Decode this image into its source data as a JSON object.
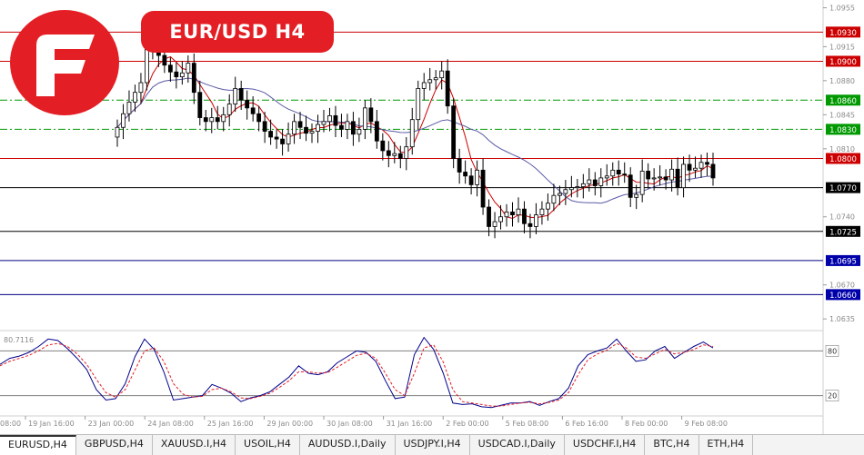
{
  "header": {
    "title": "EUR/USD  H4"
  },
  "colors": {
    "brand": "#e31e24",
    "resistance": "#cc0000",
    "pivot": "#009900",
    "support": "#000000",
    "deep_support": "#000080",
    "ma_fast": "#cc0000",
    "ma_slow": "#5a5aa6",
    "stoch_main": "#00008b",
    "stoch_signal": "#e31e24"
  },
  "tabs": [
    {
      "label": "EURUSD,H4",
      "active": true
    },
    {
      "label": "GBPUSD,H4"
    },
    {
      "label": "XAUUSD.I,H4"
    },
    {
      "label": "USOIL,H4"
    },
    {
      "label": "AUDUSD.I,Daily"
    },
    {
      "label": "USDJPY.I,H4"
    },
    {
      "label": "USDCAD.I,Daily"
    },
    {
      "label": "USDCHF.I,H4"
    },
    {
      "label": "BTC,H4"
    },
    {
      "label": "ETH,H4"
    }
  ],
  "chart_data": {
    "type": "candlestick",
    "symbol": "EURUSD",
    "timeframe": "H4",
    "ylim": [
      1.0623,
      1.0963
    ],
    "y_ticks": [
      "1.0955",
      "1.0915",
      "1.0880",
      "1.0845",
      "1.0810",
      "1.0740",
      "1.0670",
      "1.0635"
    ],
    "levels": [
      {
        "value": 1.093,
        "label": "1.0930",
        "kind": "resistance"
      },
      {
        "value": 1.09,
        "label": "1.0900",
        "kind": "resistance"
      },
      {
        "value": 1.086,
        "label": "1.0860",
        "kind": "pivot"
      },
      {
        "value": 1.083,
        "label": "1.0830",
        "kind": "pivot"
      },
      {
        "value": 1.08,
        "label": "1.0800",
        "kind": "resistance"
      },
      {
        "value": 1.077,
        "label": "1.0770",
        "kind": "support"
      },
      {
        "value": 1.0725,
        "label": "1.0725",
        "kind": "support"
      },
      {
        "value": 1.0695,
        "label": "1.0695",
        "kind": "deep_support"
      },
      {
        "value": 1.066,
        "label": "1.0660",
        "kind": "deep_support"
      }
    ],
    "x_labels": [
      "19 Jan 16:00",
      "23 Jan 00:00",
      "24 Jan 08:00",
      "25 Jan 16:00",
      "29 Jan 00:00",
      "30 Jan 08:00",
      "31 Jan 16:00",
      "2 Feb 00:00",
      "5 Feb 08:00",
      "6 Feb 16:00",
      "8 Feb 00:00",
      "9 Feb 08:00"
    ],
    "first_x_label_fragment": "08:00",
    "closes": [
      1.0832,
      1.0846,
      1.0858,
      1.0868,
      1.0878,
      1.0912,
      1.092,
      1.0906,
      1.0896,
      1.0889,
      1.0884,
      1.0888,
      1.0898,
      1.0868,
      1.0842,
      1.0838,
      1.0842,
      1.0838,
      1.0845,
      1.0856,
      1.0872,
      1.086,
      1.0852,
      1.0846,
      1.0838,
      1.0828,
      1.0822,
      1.082,
      1.0815,
      1.0825,
      1.0838,
      1.0832,
      1.0826,
      1.0828,
      1.0835,
      1.0838,
      1.0844,
      1.0834,
      1.083,
      1.0838,
      1.0825,
      1.083,
      1.0852,
      1.0838,
      1.0818,
      1.0808,
      1.0803,
      1.0805,
      1.08,
      1.0812,
      1.084,
      1.0872,
      1.0878,
      1.0881,
      1.0883,
      1.089,
      1.0854,
      1.08,
      1.0786,
      1.0782,
      1.0773,
      1.0788,
      1.075,
      1.073,
      1.0735,
      1.074,
      1.0745,
      1.0742,
      1.0748,
      1.0733,
      1.073,
      1.0742,
      1.0748,
      1.0754,
      1.0762,
      1.0764,
      1.0768,
      1.077,
      1.0771,
      1.0774,
      1.0778,
      1.0772,
      1.078,
      1.0782,
      1.0788,
      1.0784,
      1.0783,
      1.076,
      1.0763,
      1.0787,
      1.0779,
      1.078,
      1.0781,
      1.0778,
      1.0789,
      1.077,
      1.0794,
      1.0788,
      1.079,
      1.0796,
      1.0794,
      1.078
    ],
    "stoch_levels": [
      80,
      20
    ],
    "stoch_value_label": "80.7116",
    "stoch_main": [
      62,
      70,
      73,
      78,
      86,
      96,
      94,
      83,
      70,
      55,
      28,
      14,
      16,
      36,
      72,
      96,
      82,
      52,
      14,
      16,
      18,
      20,
      35,
      30,
      23,
      12,
      17,
      20,
      25,
      35,
      45,
      60,
      50,
      48,
      52,
      64,
      72,
      80,
      78,
      66,
      40,
      16,
      18,
      75,
      98,
      82,
      50,
      10,
      8,
      9,
      5,
      4,
      7,
      10,
      10,
      12,
      7,
      12,
      16,
      30,
      60,
      75,
      80,
      84,
      96,
      80,
      66,
      68,
      80,
      86,
      70,
      78,
      86,
      92,
      84
    ],
    "stoch_signal": [
      60,
      66,
      70,
      74,
      80,
      88,
      90,
      86,
      76,
      62,
      42,
      24,
      18,
      28,
      54,
      80,
      84,
      66,
      36,
      22,
      18,
      19,
      28,
      30,
      25,
      17,
      16,
      19,
      23,
      31,
      40,
      52,
      52,
      50,
      51,
      58,
      66,
      74,
      77,
      70,
      50,
      28,
      20,
      50,
      84,
      88,
      65,
      28,
      12,
      10,
      8,
      6,
      6,
      8,
      10,
      11,
      9,
      11,
      14,
      24,
      48,
      68,
      76,
      81,
      90,
      84,
      72,
      70,
      76,
      82,
      76,
      78,
      82,
      88,
      86
    ]
  }
}
